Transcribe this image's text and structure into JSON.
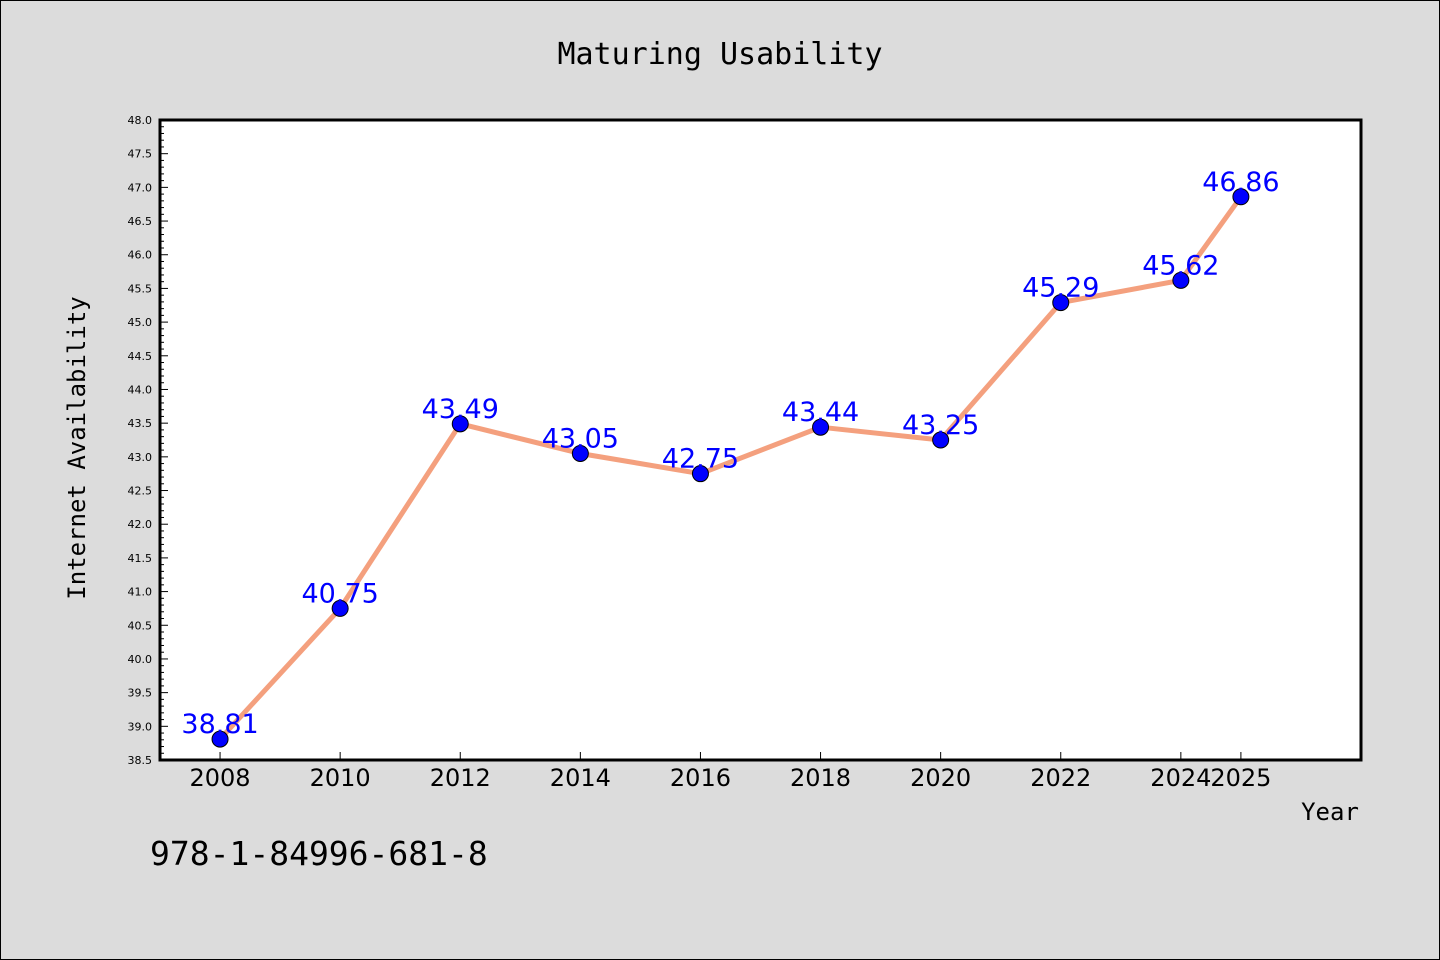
{
  "colors": {
    "background": "#dcdcdc",
    "plot_background": "#ffffff",
    "line": "#f4a07e",
    "marker": "#0000ff",
    "label": "#0000ff"
  },
  "note": "978-1-84996-681-8",
  "chart_data": {
    "type": "line",
    "title": "Maturing Usability",
    "xlabel": "Year",
    "ylabel": "Internet Availability",
    "categories": [
      "2008",
      "2010",
      "2012",
      "2014",
      "2016",
      "2018",
      "2020",
      "2022",
      "2024",
      "2025"
    ],
    "series": [
      {
        "values": [
          38.81,
          40.75,
          43.49,
          43.05,
          42.75,
          43.44,
          43.25,
          45.29,
          45.62,
          46.86
        ]
      }
    ],
    "data_labels": [
      "38.81",
      "40.75",
      "43.49",
      "43.05",
      "42.75",
      "43.44",
      "43.25",
      "45.29",
      "45.62",
      "46.86"
    ],
    "ylim": [
      38.5,
      48.0
    ],
    "yticks": [
      "38.5",
      "39.0",
      "39.5",
      "40.0",
      "40.5",
      "41.0",
      "41.5",
      "42.0",
      "42.5",
      "43.0",
      "43.5",
      "44.0",
      "44.5",
      "45.0",
      "45.5",
      "46.0",
      "46.5",
      "47.0",
      "47.5",
      "48.0"
    ],
    "grid": false,
    "legend": "none"
  }
}
